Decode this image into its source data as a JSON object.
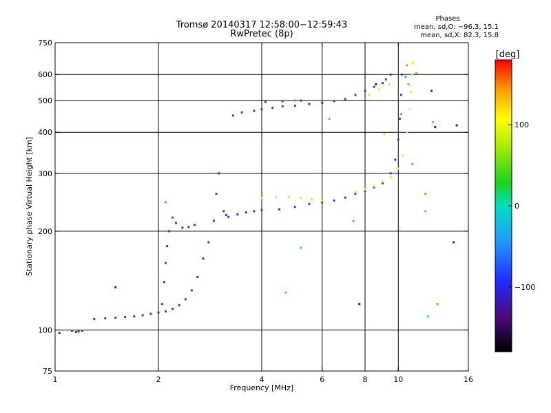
{
  "chart_data": {
    "type": "scatter",
    "title": "Tromsø 20140317 12:58:00−12:59:43",
    "subtitle": "RwPretec (8p)",
    "xlabel": "Frequency [MHz]",
    "ylabel": "Stationary phase Virtual Height [km]",
    "x_scale": "log",
    "y_scale": "log",
    "xlim": [
      1,
      16
    ],
    "ylim": [
      75,
      750
    ],
    "x_ticks": [
      1,
      2,
      4,
      6,
      8,
      10,
      16
    ],
    "x_tick_labels": [
      "1",
      "2",
      "4",
      "6",
      "8",
      "10",
      "16"
    ],
    "y_ticks": [
      75,
      100,
      200,
      300,
      400,
      500,
      600,
      750
    ],
    "y_tick_labels": [
      "75",
      "100",
      "200",
      "300",
      "400",
      "500",
      "600",
      "750"
    ],
    "x_grid": [
      2,
      4,
      6,
      8,
      10
    ],
    "y_grid": [
      100,
      200,
      300,
      400,
      500,
      600
    ],
    "phase_box": {
      "title": "Phases",
      "line_o": "mean, sd,O: −96.3, 15.1",
      "line_x": "mean, sd,X:  82.3, 15.8"
    },
    "colorbar": {
      "label": "[deg]",
      "range": [
        -180,
        180
      ],
      "ticks": [
        100,
        0,
        -100
      ],
      "tick_labels": [
        "100",
        "0",
        "−100"
      ]
    },
    "series": [
      {
        "phase": -100,
        "color": "#2a3cf0",
        "points": [
          [
            1.03,
            98
          ],
          [
            1.12,
            99.5
          ],
          [
            1.15,
            98.5
          ],
          [
            1.17,
            99
          ],
          [
            1.2,
            99.5
          ],
          [
            1.3,
            108
          ],
          [
            1.4,
            108.5
          ],
          [
            1.5,
            109
          ],
          [
            1.6,
            109.5
          ],
          [
            1.7,
            110
          ],
          [
            1.8,
            111
          ],
          [
            1.9,
            112
          ],
          [
            2.0,
            113
          ],
          [
            2.1,
            114
          ],
          [
            2.2,
            116
          ],
          [
            2.3,
            119
          ],
          [
            2.4,
            124
          ],
          [
            2.5,
            132
          ],
          [
            2.6,
            145
          ],
          [
            2.7,
            165
          ],
          [
            2.8,
            185
          ],
          [
            2.9,
            215
          ],
          [
            2.95,
            260
          ],
          [
            3.0,
            300
          ],
          [
            2.05,
            120
          ],
          [
            2.08,
            140
          ],
          [
            2.1,
            160
          ],
          [
            2.12,
            180
          ],
          [
            2.15,
            200
          ],
          [
            2.2,
            220
          ],
          [
            2.25,
            212
          ],
          [
            2.35,
            205
          ],
          [
            2.45,
            206
          ],
          [
            2.55,
            209
          ],
          [
            3.1,
            230
          ],
          [
            3.15,
            224
          ],
          [
            3.2,
            221
          ],
          [
            3.4,
            225
          ],
          [
            3.6,
            228
          ],
          [
            3.8,
            230
          ],
          [
            4.0,
            232
          ],
          [
            4.5,
            233
          ],
          [
            5.0,
            237
          ],
          [
            5.5,
            242
          ],
          [
            6.0,
            245
          ],
          [
            6.5,
            248
          ],
          [
            7.0,
            253
          ],
          [
            7.5,
            260
          ],
          [
            8.0,
            265
          ],
          [
            8.5,
            272
          ],
          [
            9.0,
            280
          ],
          [
            9.5,
            300
          ],
          [
            9.8,
            330
          ],
          [
            10.0,
            380
          ],
          [
            10.1,
            440
          ],
          [
            10.2,
            520
          ],
          [
            10.25,
            600
          ],
          [
            3.3,
            450
          ],
          [
            3.5,
            460
          ],
          [
            3.8,
            465
          ],
          [
            4.0,
            470
          ],
          [
            4.3,
            475
          ],
          [
            4.6,
            480
          ],
          [
            5.0,
            482
          ],
          [
            5.5,
            488
          ],
          [
            6.0,
            492
          ],
          [
            6.5,
            498
          ],
          [
            7.0,
            505
          ],
          [
            7.5,
            520
          ],
          [
            8.0,
            535
          ],
          [
            8.5,
            550
          ],
          [
            9.0,
            565
          ],
          [
            9.2,
            580
          ],
          [
            9.5,
            600
          ],
          [
            4.1,
            495
          ],
          [
            4.6,
            498
          ],
          [
            5.2,
            500
          ]
        ]
      },
      {
        "phase": 80,
        "color": "#e8f000",
        "points": [
          [
            4.0,
            252
          ],
          [
            4.4,
            254
          ],
          [
            4.8,
            254
          ],
          [
            5.2,
            253
          ],
          [
            5.6,
            250
          ],
          [
            6.0,
            248
          ],
          [
            7.5,
            263
          ],
          [
            8.0,
            268
          ],
          [
            8.5,
            274
          ],
          [
            9.0,
            283
          ],
          [
            9.5,
            292
          ],
          [
            10.0,
            310
          ],
          [
            10.3,
            340
          ],
          [
            10.6,
            400
          ],
          [
            10.8,
            470
          ],
          [
            10.9,
            530
          ],
          [
            10.95,
            600
          ],
          [
            11.0,
            650
          ],
          [
            8.2,
            520
          ],
          [
            8.8,
            540
          ],
          [
            9.4,
            560
          ],
          [
            9.1,
            395
          ]
        ]
      },
      {
        "phase": 160,
        "color": "#ff8a00",
        "points": [
          [
            10.6,
            640
          ],
          [
            10.7,
            560
          ],
          [
            11.3,
            605
          ],
          [
            12.6,
            430
          ],
          [
            13.0,
            120
          ],
          [
            12.0,
            260
          ]
        ]
      },
      {
        "phase": 20,
        "color": "#33cc55",
        "points": [
          [
            2.1,
            245
          ],
          [
            7.4,
            215
          ],
          [
            10.5,
            590
          ],
          [
            5.0,
            500
          ]
        ]
      },
      {
        "phase": -20,
        "color": "#20d6e6",
        "points": [
          [
            5.2,
            178
          ],
          [
            6.3,
            440
          ],
          [
            10.2,
            455
          ],
          [
            11.0,
            320
          ],
          [
            12.0,
            230
          ],
          [
            12.2,
            110
          ],
          [
            4.7,
            130
          ]
        ]
      },
      {
        "phase": -140,
        "color": "#5a0a8a",
        "points": [
          [
            1.5,
            135
          ],
          [
            7.7,
            120
          ],
          [
            8.6,
            560
          ],
          [
            12.5,
            535
          ],
          [
            12.8,
            415
          ],
          [
            14.5,
            185
          ],
          [
            14.8,
            420
          ]
        ]
      }
    ]
  }
}
